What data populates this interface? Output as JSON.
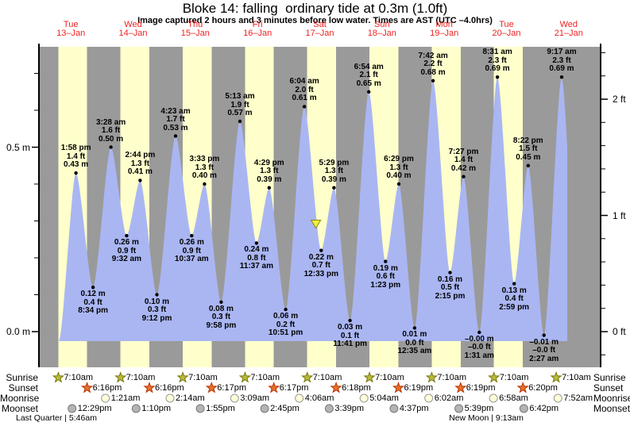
{
  "title": "Bloke 14: falling  ordinary tide at 0.3m (1.0ft)",
  "subtitle": "Image captured 2 hours and 3 minutes before low water. Times are AST (UTC –4.0hrs)",
  "days": [
    {
      "weekday": "Tue",
      "date": "13–Jan"
    },
    {
      "weekday": "Wed",
      "date": "14–Jan"
    },
    {
      "weekday": "Thu",
      "date": "15–Jan"
    },
    {
      "weekday": "Fri",
      "date": "16–Jan"
    },
    {
      "weekday": "Sat",
      "date": "17–Jan"
    },
    {
      "weekday": "Sun",
      "date": "18–Jan"
    },
    {
      "weekday": "Mon",
      "date": "19–Jan"
    },
    {
      "weekday": "Tue",
      "date": "20–Jan"
    },
    {
      "weekday": "Wed",
      "date": "21–Jan"
    }
  ],
  "chart_data": {
    "type": "area",
    "title": "Bloke 14: falling  ordinary tide at 0.3m (1.0ft)",
    "x_categories": [
      "Tue 13–Jan",
      "Wed 14–Jan",
      "Thu 15–Jan",
      "Fri 16–Jan",
      "Sat 17–Jan",
      "Sun 18–Jan",
      "Mon 19–Jan",
      "Tue 20–Jan",
      "Wed 21–Jan"
    ],
    "y_left_ticks": [
      {
        "label": "0.5 m",
        "value": 0.5
      },
      {
        "label": "0.0 m",
        "value": 0.0
      }
    ],
    "y_right_ticks": [
      {
        "label": "2 ft",
        "value": 2
      },
      {
        "label": "1 ft",
        "value": 1
      },
      {
        "label": "0 ft",
        "value": 0
      }
    ],
    "ylim_m": [
      -0.1,
      0.78
    ],
    "grid": false,
    "extremes": [
      {
        "day": 0,
        "kind": "high",
        "time": "1:58 pm",
        "ft": "1.4 ft",
        "m": "0.43 m",
        "value_m": 0.43
      },
      {
        "day": 0,
        "kind": "low",
        "time": "8:34 pm",
        "ft": "0.4 ft",
        "m": "0.12 m",
        "value_m": 0.12
      },
      {
        "day": 1,
        "kind": "high",
        "time": "3:28 am",
        "ft": "1.6 ft",
        "m": "0.50 m",
        "value_m": 0.5
      },
      {
        "day": 1,
        "kind": "low",
        "time": "9:32 am",
        "ft": "0.9 ft",
        "m": "0.26 m",
        "value_m": 0.26
      },
      {
        "day": 1,
        "kind": "high",
        "time": "2:44 pm",
        "ft": "1.3 ft",
        "m": "0.41 m",
        "value_m": 0.41
      },
      {
        "day": 1,
        "kind": "low",
        "time": "9:12 pm",
        "ft": "0.3 ft",
        "m": "0.10 m",
        "value_m": 0.1
      },
      {
        "day": 2,
        "kind": "high",
        "time": "4:23 am",
        "ft": "1.7 ft",
        "m": "0.53 m",
        "value_m": 0.53
      },
      {
        "day": 2,
        "kind": "low",
        "time": "10:37 am",
        "ft": "0.9 ft",
        "m": "0.26 m",
        "value_m": 0.26
      },
      {
        "day": 2,
        "kind": "high",
        "time": "3:33 pm",
        "ft": "1.3 ft",
        "m": "0.40 m",
        "value_m": 0.4
      },
      {
        "day": 2,
        "kind": "low",
        "time": "9:58 pm",
        "ft": "0.3 ft",
        "m": "0.08 m",
        "value_m": 0.08
      },
      {
        "day": 3,
        "kind": "high",
        "time": "5:13 am",
        "ft": "1.9 ft",
        "m": "0.57 m",
        "value_m": 0.57
      },
      {
        "day": 3,
        "kind": "low",
        "time": "11:37 am",
        "ft": "0.8 ft",
        "m": "0.24 m",
        "value_m": 0.24
      },
      {
        "day": 3,
        "kind": "high",
        "time": "4:29 pm",
        "ft": "1.3 ft",
        "m": "0.39 m",
        "value_m": 0.39
      },
      {
        "day": 3,
        "kind": "low",
        "time": "10:51 pm",
        "ft": "0.2 ft",
        "m": "0.06 m",
        "value_m": 0.06
      },
      {
        "day": 4,
        "kind": "high",
        "time": "6:04 am",
        "ft": "2.0 ft",
        "m": "0.61 m",
        "value_m": 0.61
      },
      {
        "day": 4,
        "kind": "low",
        "time": "12:33 pm",
        "ft": "0.7 ft",
        "m": "0.22 m",
        "value_m": 0.22
      },
      {
        "day": 4,
        "kind": "high",
        "time": "5:29 pm",
        "ft": "1.3 ft",
        "m": "0.39 m",
        "value_m": 0.39
      },
      {
        "day": 4,
        "kind": "low",
        "time": "11:41 pm",
        "ft": "0.1 ft",
        "m": "0.03 m",
        "value_m": 0.03
      },
      {
        "day": 5,
        "kind": "high",
        "time": "6:54 am",
        "ft": "2.1 ft",
        "m": "0.65 m",
        "value_m": 0.65
      },
      {
        "day": 5,
        "kind": "low",
        "time": "1:23 pm",
        "ft": "0.6 ft",
        "m": "0.19 m",
        "value_m": 0.19
      },
      {
        "day": 5,
        "kind": "high",
        "time": "6:29 pm",
        "ft": "1.3 ft",
        "m": "0.40 m",
        "value_m": 0.4
      },
      {
        "day": 6,
        "kind": "low",
        "time": "12:35 am",
        "ft": "0.0 ft",
        "m": "0.01 m",
        "value_m": 0.01
      },
      {
        "day": 6,
        "kind": "high",
        "time": "7:42 am",
        "ft": "2.2 ft",
        "m": "0.68 m",
        "value_m": 0.68
      },
      {
        "day": 6,
        "kind": "low",
        "time": "2:15 pm",
        "ft": "0.5 ft",
        "m": "0.16 m",
        "value_m": 0.16
      },
      {
        "day": 6,
        "kind": "high",
        "time": "7:27 pm",
        "ft": "1.4 ft",
        "m": "0.42 m",
        "value_m": 0.42
      },
      {
        "day": 7,
        "kind": "low",
        "time": "1:31 am",
        "ft": "–0.0 ft",
        "m": "–0.00 m",
        "value_m": -0.002
      },
      {
        "day": 7,
        "kind": "high",
        "time": "8:31 am",
        "ft": "2.3 ft",
        "m": "0.69 m",
        "value_m": 0.69
      },
      {
        "day": 7,
        "kind": "low",
        "time": "2:59 pm",
        "ft": "0.4 ft",
        "m": "0.13 m",
        "value_m": 0.13
      },
      {
        "day": 7,
        "kind": "high",
        "time": "8:22 pm",
        "ft": "1.5 ft",
        "m": "0.45 m",
        "value_m": 0.45
      },
      {
        "day": 8,
        "kind": "low",
        "time": "2:27 am",
        "ft": "–0.0 ft",
        "m": "–0.01 m",
        "value_m": -0.01
      },
      {
        "day": 8,
        "kind": "high",
        "time": "9:17 am",
        "ft": "2.3 ft",
        "m": "0.69 m",
        "value_m": 0.69
      }
    ],
    "capture_marker": {
      "day": 4,
      "hour": 10.5
    }
  },
  "astro": {
    "row_labels": [
      "Sunrise",
      "Sunset",
      "Moonrise",
      "Moonset"
    ],
    "sunrise": [
      {
        "day": 0,
        "time": "7:10am"
      },
      {
        "day": 1,
        "time": "7:10am"
      },
      {
        "day": 2,
        "time": "7:10am"
      },
      {
        "day": 3,
        "time": "7:10am"
      },
      {
        "day": 4,
        "time": "7:10am"
      },
      {
        "day": 5,
        "time": "7:10am"
      },
      {
        "day": 6,
        "time": "7:10am"
      },
      {
        "day": 7,
        "time": "7:10am"
      },
      {
        "day": 8,
        "time": "7:10am"
      }
    ],
    "sunset": [
      {
        "day": 0,
        "time": "6:16pm"
      },
      {
        "day": 1,
        "time": "6:16pm"
      },
      {
        "day": 2,
        "time": "6:17pm"
      },
      {
        "day": 3,
        "time": "6:17pm"
      },
      {
        "day": 4,
        "time": "6:18pm"
      },
      {
        "day": 5,
        "time": "6:19pm"
      },
      {
        "day": 6,
        "time": "6:19pm"
      },
      {
        "day": 7,
        "time": "6:20pm"
      }
    ],
    "moonrise": [
      {
        "day": 1,
        "time": "1:21am"
      },
      {
        "day": 2,
        "time": "2:14am"
      },
      {
        "day": 3,
        "time": "3:09am"
      },
      {
        "day": 4,
        "time": "4:06am"
      },
      {
        "day": 5,
        "time": "5:04am"
      },
      {
        "day": 6,
        "time": "6:02am"
      },
      {
        "day": 7,
        "time": "6:58am"
      },
      {
        "day": 8,
        "time": "7:52am"
      }
    ],
    "moonset": [
      {
        "day": 0,
        "time": "12:29pm"
      },
      {
        "day": 1,
        "time": "1:10pm"
      },
      {
        "day": 2,
        "time": "1:55pm"
      },
      {
        "day": 3,
        "time": "2:45pm"
      },
      {
        "day": 4,
        "time": "3:39pm"
      },
      {
        "day": 5,
        "time": "4:37pm"
      },
      {
        "day": 6,
        "time": "5:39pm"
      },
      {
        "day": 7,
        "time": "6:42pm"
      }
    ]
  },
  "phases": [
    {
      "label": "Last Quarter | 5:46am"
    },
    {
      "label": "New Moon | 9:13am"
    }
  ],
  "colors": {
    "day_band": "#ffffcc",
    "night_band": "#9a9a9a",
    "tide_fill": "#aab6f2",
    "day_label": "#ee2222",
    "sunrise_icon": "#b9bb3c",
    "sunset_icon": "#e4722e",
    "moonrise_icon": "#ffffd9",
    "moonset_icon": "#b4b4b4",
    "marker_fill": "#eeee44"
  }
}
